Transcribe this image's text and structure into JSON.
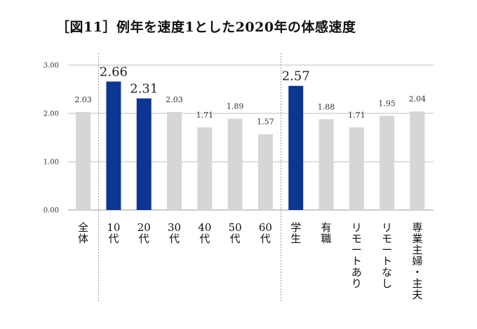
{
  "chart_data": {
    "type": "bar",
    "title": "［図11］例年を速度1とした2020年の体感速度",
    "categories": [
      "全体",
      "10代",
      "20代",
      "30代",
      "40代",
      "50代",
      "60代",
      "学生",
      "有職",
      "リモートあり",
      "リモートなし",
      "専業主婦・主夫"
    ],
    "values": [
      2.03,
      2.66,
      2.31,
      2.03,
      1.71,
      1.89,
      1.57,
      2.57,
      1.88,
      1.71,
      1.95,
      2.04
    ],
    "value_labels": [
      "2.03",
      "2.66",
      "2.31",
      "2.03",
      "1.71",
      "1.89",
      "1.57",
      "2.57",
      "1.88",
      "1.71",
      "1.95",
      "2.04"
    ],
    "highlight": [
      false,
      true,
      true,
      false,
      false,
      false,
      false,
      true,
      false,
      false,
      false,
      false
    ],
    "yticks": [
      "0.00",
      "1.00",
      "2.00",
      "3.00"
    ],
    "ylim": [
      0,
      3
    ],
    "grid": true,
    "colors": {
      "highlight": "#0d3592",
      "normal": "#d6d6d6"
    }
  }
}
